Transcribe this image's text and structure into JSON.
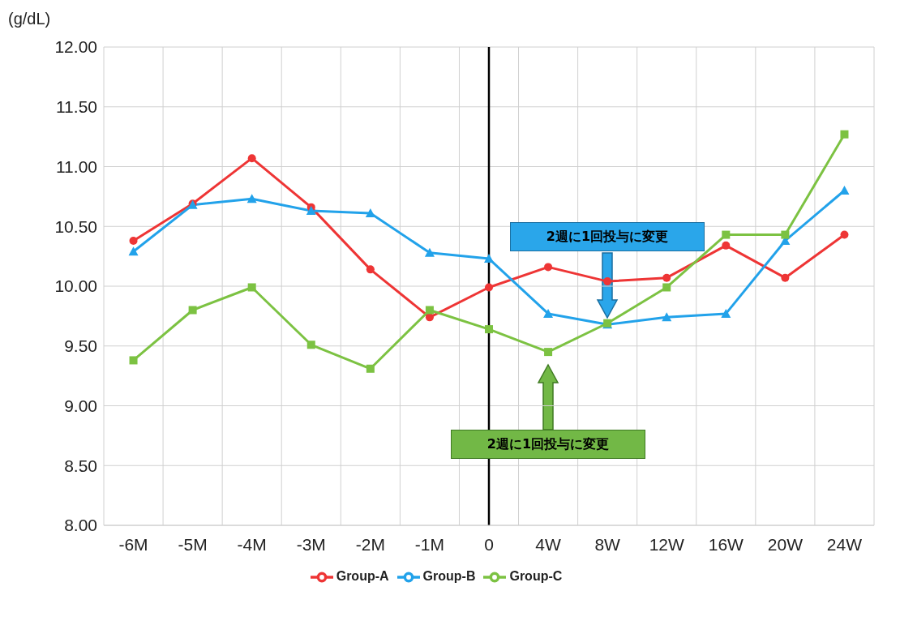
{
  "chart_data": {
    "type": "line",
    "ylabel": "(g/dL)",
    "categories": [
      "-6M",
      "-5M",
      "-4M",
      "-3M",
      "-2M",
      "-1M",
      "0",
      "4W",
      "8W",
      "12W",
      "16W",
      "20W",
      "24W"
    ],
    "series": [
      {
        "name": "Group-A",
        "color": "#ee3535",
        "marker": "circle",
        "values": [
          10.38,
          10.69,
          11.07,
          10.66,
          10.14,
          9.74,
          9.99,
          10.16,
          10.04,
          10.07,
          10.34,
          10.07,
          10.43
        ]
      },
      {
        "name": "Group-B",
        "color": "#22a2ea",
        "marker": "triangle",
        "values": [
          10.29,
          10.68,
          10.73,
          10.63,
          10.61,
          10.28,
          10.23,
          9.77,
          9.68,
          9.74,
          9.77,
          10.38,
          10.8
        ]
      },
      {
        "name": "Group-C",
        "color": "#7cc242",
        "marker": "square",
        "values": [
          9.38,
          9.8,
          9.99,
          9.51,
          9.31,
          9.8,
          9.64,
          9.45,
          9.69,
          9.99,
          10.43,
          10.43,
          11.27
        ]
      }
    ],
    "ylim": [
      8,
      12
    ],
    "yticks": [
      {
        "value": 8,
        "label": "8.00"
      },
      {
        "value": 8.5,
        "label": "8.50"
      },
      {
        "value": 9,
        "label": "9.00"
      },
      {
        "value": 9.5,
        "label": "9.50"
      },
      {
        "value": 10,
        "label": "10.00"
      },
      {
        "value": 10.5,
        "label": "10.50"
      },
      {
        "value": 11,
        "label": "11.00"
      },
      {
        "value": 11.5,
        "label": "11.50"
      },
      {
        "value": 12,
        "label": "12.00"
      }
    ],
    "grid": true,
    "legend": "bottom",
    "ref_lines": [
      {
        "axis": "x",
        "value": "0",
        "color": "#000000"
      }
    ],
    "annotations": [
      "2週に1回投与に変更",
      "2週に1回投与に変更"
    ]
  }
}
